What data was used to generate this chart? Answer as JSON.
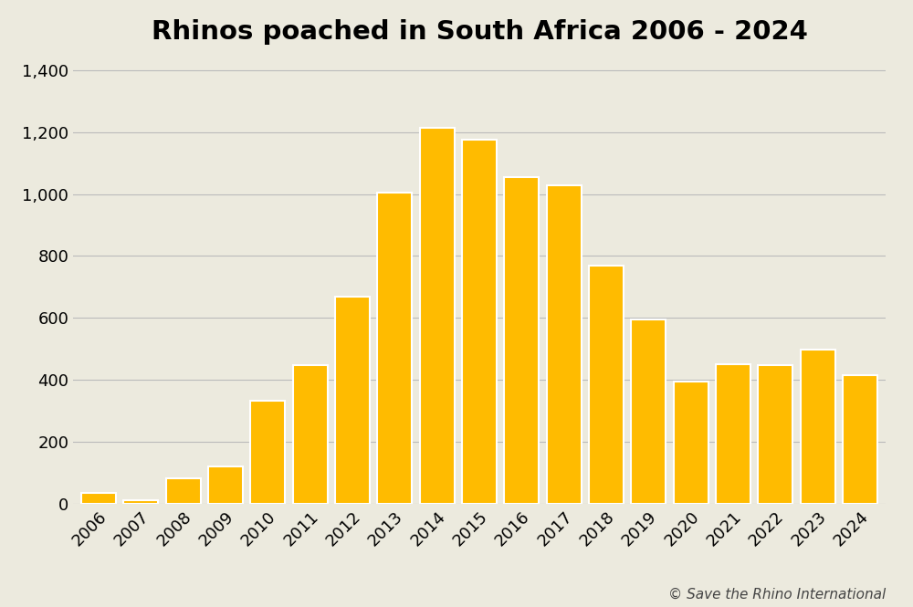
{
  "title": "Rhinos poached in South Africa 2006 - 2024",
  "years": [
    2006,
    2007,
    2008,
    2009,
    2010,
    2011,
    2012,
    2013,
    2014,
    2015,
    2016,
    2017,
    2018,
    2019,
    2020,
    2021,
    2022,
    2023,
    2024
  ],
  "values": [
    36,
    13,
    83,
    122,
    333,
    448,
    668,
    1004,
    1215,
    1175,
    1054,
    1028,
    769,
    594,
    394,
    451,
    448,
    499,
    415
  ],
  "bar_color": "#FFBB00",
  "bar_edge_color": "#FFFFFF",
  "background_color": "#ECEADE",
  "grid_color": "#BBBBBB",
  "title_fontsize": 21,
  "tick_fontsize": 13,
  "ytick_labels": [
    "0",
    "200",
    "400",
    "600",
    "800",
    "1,000",
    "1,200",
    "1,400"
  ],
  "ytick_values": [
    0,
    200,
    400,
    600,
    800,
    1000,
    1200,
    1400
  ],
  "ylim": [
    0,
    1450
  ],
  "annotation": "© Save the Rhino International",
  "annotation_fontsize": 11
}
